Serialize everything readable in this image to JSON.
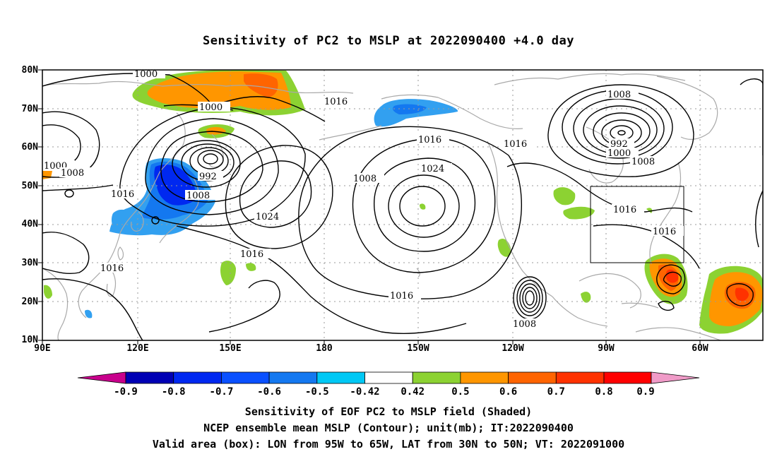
{
  "title": "Sensitivity of PC2 to MSLP at 2022090400 +4.0 day",
  "lat_labels": [
    "80N",
    "70N",
    "60N",
    "50N",
    "40N",
    "30N",
    "20N",
    "10N"
  ],
  "lon_labels": [
    "90E",
    "120E",
    "150E",
    "180",
    "150W",
    "120W",
    "90W",
    "60W"
  ],
  "contour_labels": [
    "1000",
    "1000",
    "1000",
    "1008",
    "992",
    "1008",
    "1016",
    "1016",
    "1016",
    "1024",
    "1008",
    "1016",
    "1024",
    "1016",
    "1016",
    "1008",
    "992",
    "1000",
    "1008",
    "1016",
    "1016",
    "1016",
    "1008"
  ],
  "colorbar": {
    "labels": [
      "-0.9",
      "-0.8",
      "-0.7",
      "-0.6",
      "-0.5",
      "-0.42",
      "0.42",
      "0.5",
      "0.6",
      "0.7",
      "0.8",
      "0.9"
    ],
    "colors": [
      "#c8008c",
      "#0000b4",
      "#0028f0",
      "#0a50ff",
      "#1478f0",
      "#32a0f0",
      "#00c8f5",
      "#ffffff",
      "#8cd232",
      "#ff9600",
      "#ff6400",
      "#ff3200",
      "#ff0000",
      "#f09bc8"
    ]
  },
  "shading_colors": {
    "green": "#8cd232",
    "orange": "#ff9600",
    "dark_orange": "#ff6400",
    "red_orange": "#ff3200",
    "cyan": "#32a0f0",
    "blue": "#1478f0",
    "dark_blue": "#0028f0"
  },
  "valid_box": {
    "lon_west": -95,
    "lon_east": -65,
    "lat_south": 30,
    "lat_north": 50
  },
  "footer": {
    "line1": "Sensitivity of EOF PC2 to MSLP field (Shaded)",
    "line2": "NCEP ensemble mean MSLP (Contour); unit(mb); IT:2022090400",
    "line3": "Valid area (box): LON from 95W to 65W, LAT from 30N to 50N; VT: 2022091000"
  }
}
